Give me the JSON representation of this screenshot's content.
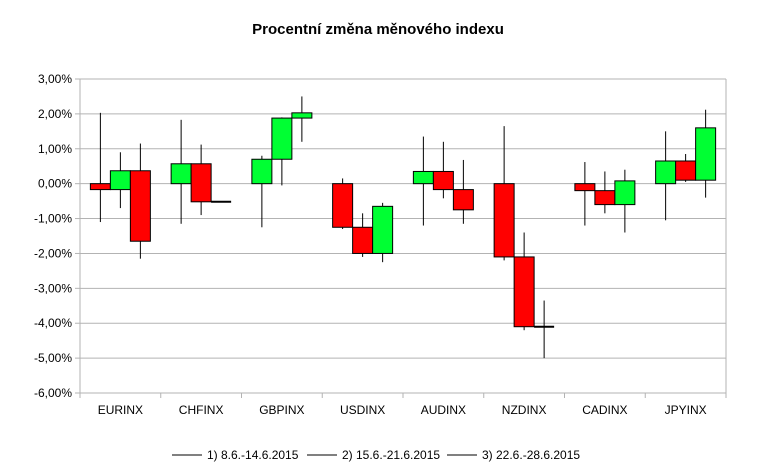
{
  "chart_data": {
    "type": "candlestick",
    "title": "Procentní změna měnového indexu",
    "categories": [
      "EURINX",
      "CHFINX",
      "GBPINX",
      "USDINX",
      "AUDINX",
      "NZDINX",
      "CADINX",
      "JPYINX"
    ],
    "ylim": [
      -6,
      3
    ],
    "yticks": [
      3,
      2,
      1,
      0,
      -1,
      -2,
      -3,
      -4,
      -5,
      -6
    ],
    "ytick_labels": [
      "3,00%",
      "2,00%",
      "1,00%",
      "0,00%",
      "-1,00%",
      "-2,00%",
      "-3,00%",
      "-4,00%",
      "-5,00%",
      "-6,00%"
    ],
    "grid": true,
    "legend_position": "bottom",
    "up_color": "#00ff33",
    "down_color": "#ff0000",
    "series": [
      {
        "name": "1) 8.6.-14.6.2015",
        "candles": [
          {
            "open": 0.0,
            "close": -0.17,
            "high": 2.03,
            "low": -1.1
          },
          {
            "open": 0.0,
            "close": 0.57,
            "high": 1.83,
            "low": -1.15
          },
          {
            "open": 0.0,
            "close": 0.7,
            "high": 0.8,
            "low": -1.25
          },
          {
            "open": 0.0,
            "close": -1.25,
            "high": 0.15,
            "low": -1.3
          },
          {
            "open": 0.0,
            "close": 0.35,
            "high": 1.35,
            "low": -1.2
          },
          {
            "open": 0.0,
            "close": -2.1,
            "high": 1.65,
            "low": -2.2
          },
          {
            "open": 0.0,
            "close": -0.2,
            "high": 0.62,
            "low": -1.2
          },
          {
            "open": 0.0,
            "close": 0.65,
            "high": 1.5,
            "low": -1.05
          }
        ]
      },
      {
        "name": "2) 15.6.-21.6.2015",
        "candles": [
          {
            "open": -0.17,
            "close": 0.37,
            "high": 0.9,
            "low": -0.7
          },
          {
            "open": 0.57,
            "close": -0.52,
            "high": 1.12,
            "low": -0.9
          },
          {
            "open": 0.7,
            "close": 1.88,
            "high": 1.9,
            "low": -0.05
          },
          {
            "open": -1.25,
            "close": -2.0,
            "high": -0.85,
            "low": -2.1
          },
          {
            "open": 0.35,
            "close": -0.17,
            "high": 1.2,
            "low": -0.42
          },
          {
            "open": -2.1,
            "close": -4.1,
            "high": -1.4,
            "low": -4.2
          },
          {
            "open": -0.2,
            "close": -0.6,
            "high": 0.35,
            "low": -0.85
          },
          {
            "open": 0.65,
            "close": 0.1,
            "high": 0.85,
            "low": 0.05
          }
        ]
      },
      {
        "name": "3) 22.6.-28.6.2015",
        "candles": [
          {
            "open": 0.37,
            "close": -1.65,
            "high": 1.15,
            "low": -2.15
          },
          {
            "open": -0.52,
            "close": -0.52,
            "high": -0.52,
            "low": -0.52
          },
          {
            "open": 1.88,
            "close": 2.03,
            "high": 2.5,
            "low": 1.2
          },
          {
            "open": -2.0,
            "close": -0.65,
            "high": -0.55,
            "low": -2.25
          },
          {
            "open": -0.17,
            "close": -0.75,
            "high": 0.68,
            "low": -1.15
          },
          {
            "open": -4.1,
            "close": -4.1,
            "high": -3.35,
            "low": -5.0
          },
          {
            "open": -0.6,
            "close": 0.08,
            "high": 0.4,
            "low": -1.4
          },
          {
            "open": 0.1,
            "close": 1.6,
            "high": 2.12,
            "low": -0.4
          }
        ]
      }
    ]
  }
}
